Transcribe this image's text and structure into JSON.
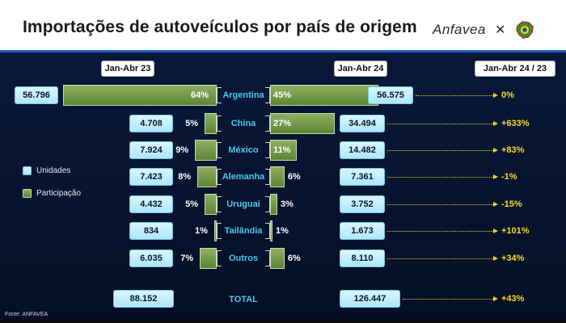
{
  "title": "Importações de autoveículos por país de origem",
  "logo_text": "Anfavea",
  "headers": {
    "left": "Jan-Abr 23",
    "right": "Jan-Abr 24",
    "var": "Jan-Abr 24 / 23"
  },
  "legend": {
    "units": "Unidades",
    "share": "Participação"
  },
  "source": "Fonte: ANFAVEA",
  "colors": {
    "background": "#0a1a3c",
    "value_box": "#aee7f7",
    "bar": "#6f9342",
    "country_text": "#4cc9ef",
    "variation": "#f7dc1f"
  },
  "chart_data": {
    "type": "bar",
    "categories": [
      "Argentina",
      "China",
      "México",
      "Alemanha",
      "Uruguai",
      "Tailândia",
      "Outros"
    ],
    "series": [
      {
        "name": "Jan-Abr 23",
        "units": [
          "56.796",
          "4.708",
          "7.924",
          "7.423",
          "4.432",
          "834",
          "6.035"
        ],
        "share_labels": [
          "64%",
          "5%",
          "9%",
          "8%",
          "5%",
          "1%",
          "7%"
        ],
        "share": [
          64,
          5,
          9,
          8,
          5,
          1,
          7
        ]
      },
      {
        "name": "Jan-Abr 24",
        "units": [
          "56.575",
          "34.494",
          "14.482",
          "7.361",
          "3.752",
          "1.673",
          "8.110"
        ],
        "share_labels": [
          "45%",
          "27%",
          "11%",
          "6%",
          "3%",
          "1%",
          "6%"
        ],
        "share": [
          45,
          27,
          11,
          6,
          3,
          1,
          6
        ]
      }
    ],
    "variation": [
      "0%",
      "+633%",
      "+83%",
      "-1%",
      "-15%",
      "+101%",
      "+34%"
    ],
    "total": {
      "label": "TOTAL",
      "left": "88.152",
      "right": "126.447",
      "variation": "+43%"
    }
  }
}
